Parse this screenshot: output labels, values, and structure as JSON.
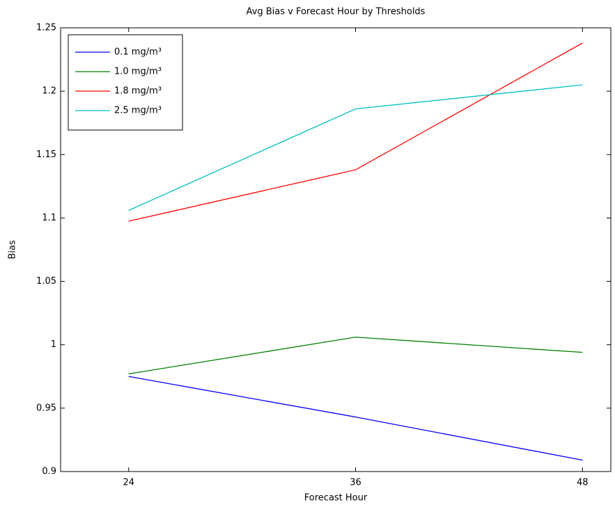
{
  "chart_data": {
    "type": "line",
    "title": "Avg Bias v Forecast Hour by Thresholds",
    "x_label": "Forecast Hour",
    "y_label": "Bias",
    "x": [
      24,
      36,
      48
    ],
    "xlim": [
      20.4,
      49.5
    ],
    "xticks": [
      24,
      36,
      48
    ],
    "ylim": [
      0.9,
      1.25
    ],
    "yticks": [
      0.9,
      0.95,
      1,
      1.05,
      1.1,
      1.15,
      1.2,
      1.25
    ],
    "grid": false,
    "legend": "northwest",
    "series": [
      {
        "name": "0.1 mg/m³",
        "color": "#0000ff",
        "values": [
          0.975,
          0.943,
          0.909
        ]
      },
      {
        "name": "1.0 mg/m³",
        "color": "#008000",
        "values": [
          0.977,
          1.006,
          0.994
        ]
      },
      {
        "name": "1.8 mg/m³",
        "color": "#ff0000",
        "values": [
          1.0975,
          1.138,
          1.238
        ]
      },
      {
        "name": "2.5 mg/m³",
        "color": "#00bfbf",
        "values": [
          1.106,
          1.186,
          1.205
        ]
      }
    ]
  }
}
